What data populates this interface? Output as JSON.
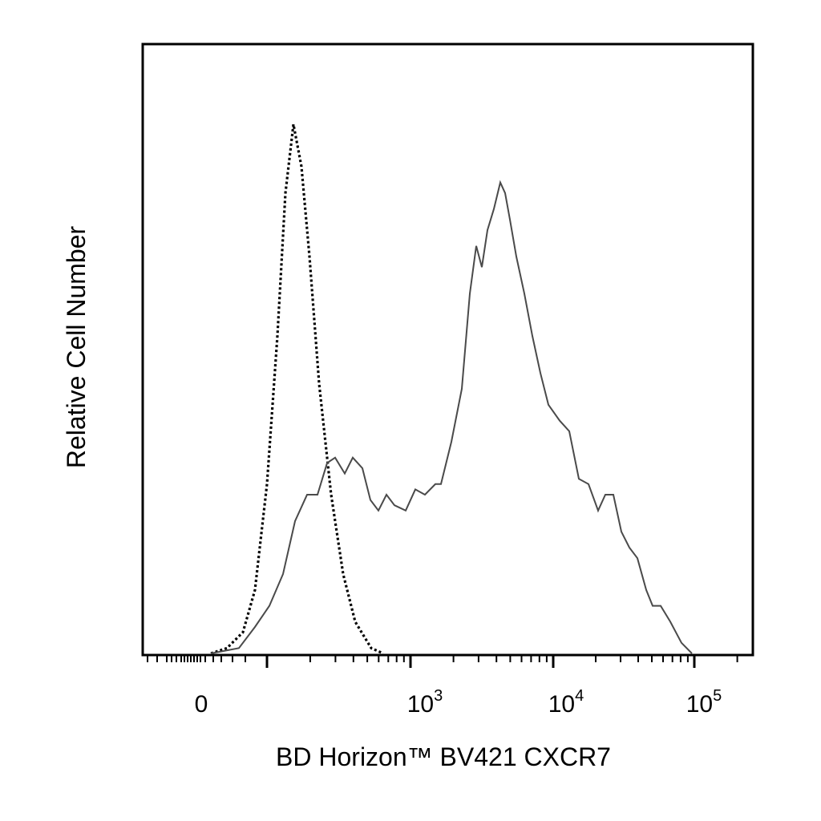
{
  "chart_data": {
    "type": "line",
    "title": "",
    "xlabel": "BD Horizon™ BV421 CXCR7",
    "ylabel": "Relative Cell Number",
    "x_scale": "biexponential",
    "xlim": [
      -400,
      150000
    ],
    "ylim": [
      0,
      1
    ],
    "grid": false,
    "legend": "none",
    "x_ticks": [
      {
        "label": "0",
        "value": 0
      },
      {
        "label": "10",
        "exp": "3",
        "value": 1000
      },
      {
        "label": "10",
        "exp": "4",
        "value": 10000
      },
      {
        "label": "10",
        "exp": "5",
        "value": 100000
      }
    ],
    "series": [
      {
        "style": "dotted",
        "color": "#000000",
        "points": [
          [
            5,
            0
          ],
          [
            25,
            0.01
          ],
          [
            45,
            0.04
          ],
          [
            60,
            0.12
          ],
          [
            75,
            0.32
          ],
          [
            88,
            0.6
          ],
          [
            98,
            0.87
          ],
          [
            108,
            1.0
          ],
          [
            118,
            0.92
          ],
          [
            128,
            0.75
          ],
          [
            140,
            0.51
          ],
          [
            155,
            0.3
          ],
          [
            170,
            0.15
          ],
          [
            185,
            0.06
          ],
          [
            205,
            0.01
          ],
          [
            220,
            0
          ]
        ]
      },
      {
        "style": "solid",
        "color": "#4a4a4a",
        "points": [
          [
            5,
            0
          ],
          [
            40,
            0.01
          ],
          [
            60,
            0.05
          ],
          [
            78,
            0.09
          ],
          [
            95,
            0.15
          ],
          [
            110,
            0.25
          ],
          [
            125,
            0.3
          ],
          [
            138,
            0.3
          ],
          [
            150,
            0.36
          ],
          [
            160,
            0.37
          ],
          [
            172,
            0.34
          ],
          [
            182,
            0.37
          ],
          [
            194,
            0.35
          ],
          [
            204,
            0.29
          ],
          [
            214,
            0.27
          ],
          [
            224,
            0.3
          ],
          [
            234,
            0.28
          ],
          [
            248,
            0.27
          ],
          [
            260,
            0.31
          ],
          [
            272,
            0.3
          ],
          [
            285,
            0.32
          ],
          [
            292,
            0.32
          ],
          [
            305,
            0.4
          ],
          [
            318,
            0.5
          ],
          [
            328,
            0.68
          ],
          [
            336,
            0.77
          ],
          [
            343,
            0.73
          ],
          [
            350,
            0.8
          ],
          [
            358,
            0.84
          ],
          [
            366,
            0.89
          ],
          [
            372,
            0.87
          ],
          [
            378,
            0.82
          ],
          [
            386,
            0.75
          ],
          [
            396,
            0.68
          ],
          [
            406,
            0.6
          ],
          [
            416,
            0.53
          ],
          [
            426,
            0.47
          ],
          [
            440,
            0.44
          ],
          [
            452,
            0.42
          ],
          [
            464,
            0.33
          ],
          [
            476,
            0.32
          ],
          [
            488,
            0.27
          ],
          [
            497,
            0.3
          ],
          [
            507,
            0.3
          ],
          [
            517,
            0.23
          ],
          [
            527,
            0.2
          ],
          [
            537,
            0.18
          ],
          [
            548,
            0.12
          ],
          [
            556,
            0.09
          ],
          [
            566,
            0.09
          ],
          [
            578,
            0.06
          ],
          [
            592,
            0.02
          ],
          [
            605,
            0
          ]
        ]
      }
    ]
  }
}
